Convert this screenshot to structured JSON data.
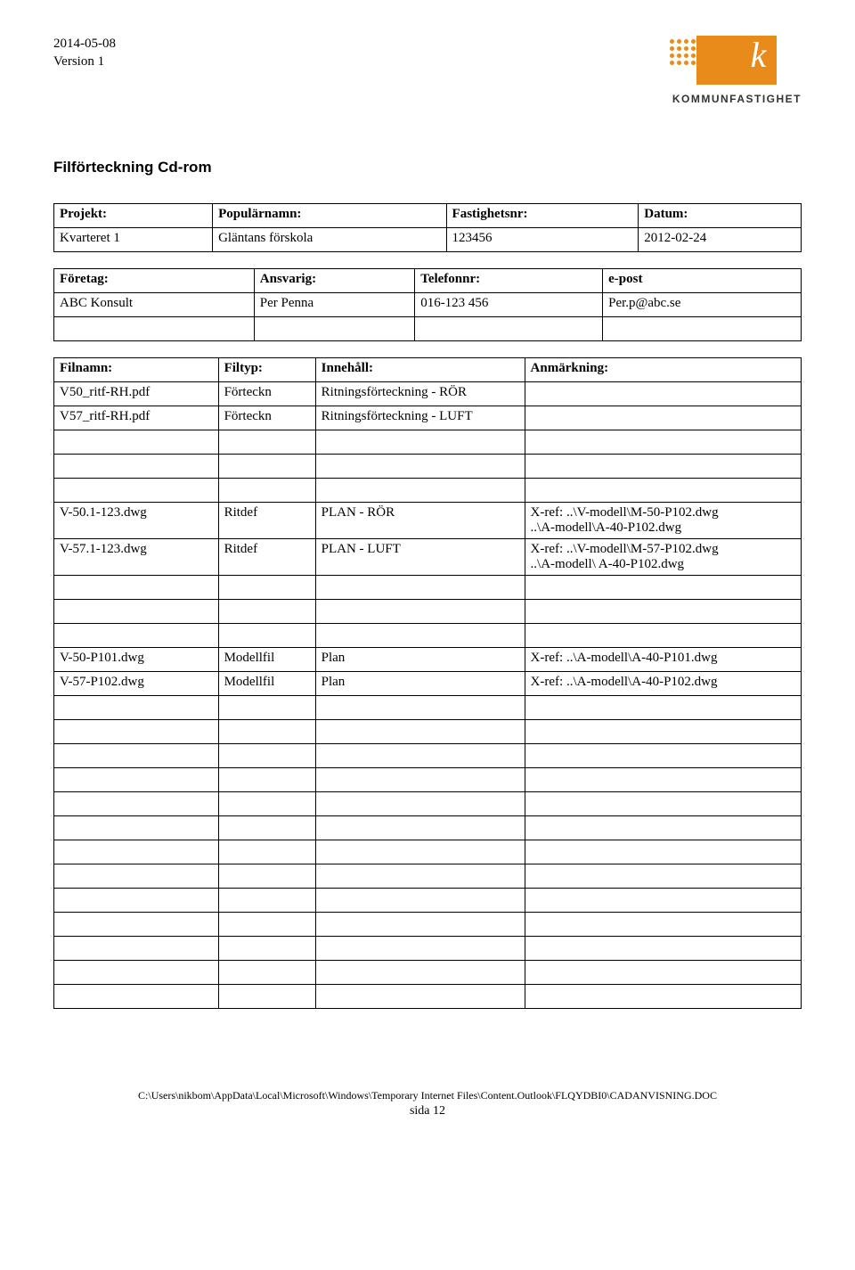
{
  "header": {
    "date": "2014-05-08",
    "version": "Version 1",
    "logo_text": "KOMMUNFASTIGHET"
  },
  "section_title": "Filförteckning Cd-rom",
  "meta1": {
    "headers": [
      "Projekt:",
      "Populärnamn:",
      "Fastighetsnr:",
      "Datum:"
    ],
    "row": [
      "Kvarteret 1",
      "Gläntans förskola",
      "123456",
      "2012-02-24"
    ]
  },
  "meta2": {
    "headers": [
      "Företag:",
      "Ansvarig:",
      "Telefonnr:",
      "e-post"
    ],
    "row": [
      "ABC Konsult",
      "Per Penna",
      "016-123 456",
      "Per.p@abc.se"
    ]
  },
  "files": {
    "headers": [
      "Filnamn:",
      "Filtyp:",
      "Innehåll:",
      "Anmärkning:"
    ],
    "rows": [
      [
        "V50_ritf-RH.pdf",
        "Förteckn",
        "Ritningsförteckning - RÖR",
        ""
      ],
      [
        "V57_ritf-RH.pdf",
        "Förteckn",
        "Ritningsförteckning - LUFT",
        ""
      ],
      [
        "",
        "",
        "",
        ""
      ],
      [
        "",
        "",
        "",
        ""
      ],
      [
        "",
        "",
        "",
        ""
      ],
      [
        "V-50.1-123.dwg",
        "Ritdef",
        "PLAN - RÖR",
        "X-ref: ..\\V-modell\\M-50-P102.dwg\n..\\A-modell\\A-40-P102.dwg"
      ],
      [
        "V-57.1-123.dwg",
        "Ritdef",
        "PLAN - LUFT",
        "X-ref: ..\\V-modell\\M-57-P102.dwg\n..\\A-modell\\ A-40-P102.dwg"
      ],
      [
        "",
        "",
        "",
        ""
      ],
      [
        "",
        "",
        "",
        ""
      ],
      [
        "",
        "",
        "",
        ""
      ],
      [
        "V-50-P101.dwg",
        "Modellfil",
        "Plan",
        "X-ref: ..\\A-modell\\A-40-P101.dwg"
      ],
      [
        "V-57-P102.dwg",
        "Modellfil",
        "Plan",
        "X-ref: ..\\A-modell\\A-40-P102.dwg"
      ],
      [
        "",
        "",
        "",
        ""
      ],
      [
        "",
        "",
        "",
        ""
      ],
      [
        "",
        "",
        "",
        ""
      ],
      [
        "",
        "",
        "",
        ""
      ],
      [
        "",
        "",
        "",
        ""
      ],
      [
        "",
        "",
        "",
        ""
      ],
      [
        "",
        "",
        "",
        ""
      ],
      [
        "",
        "",
        "",
        ""
      ],
      [
        "",
        "",
        "",
        ""
      ],
      [
        "",
        "",
        "",
        ""
      ],
      [
        "",
        "",
        "",
        ""
      ],
      [
        "",
        "",
        "",
        ""
      ],
      [
        "",
        "",
        "",
        ""
      ]
    ]
  },
  "footer": {
    "path": "C:\\Users\\nikbom\\AppData\\Local\\Microsoft\\Windows\\Temporary Internet Files\\Content.Outlook\\FLQYDBI0\\CADANVISNING.DOC",
    "page_label": "sida",
    "page_num": "12"
  }
}
